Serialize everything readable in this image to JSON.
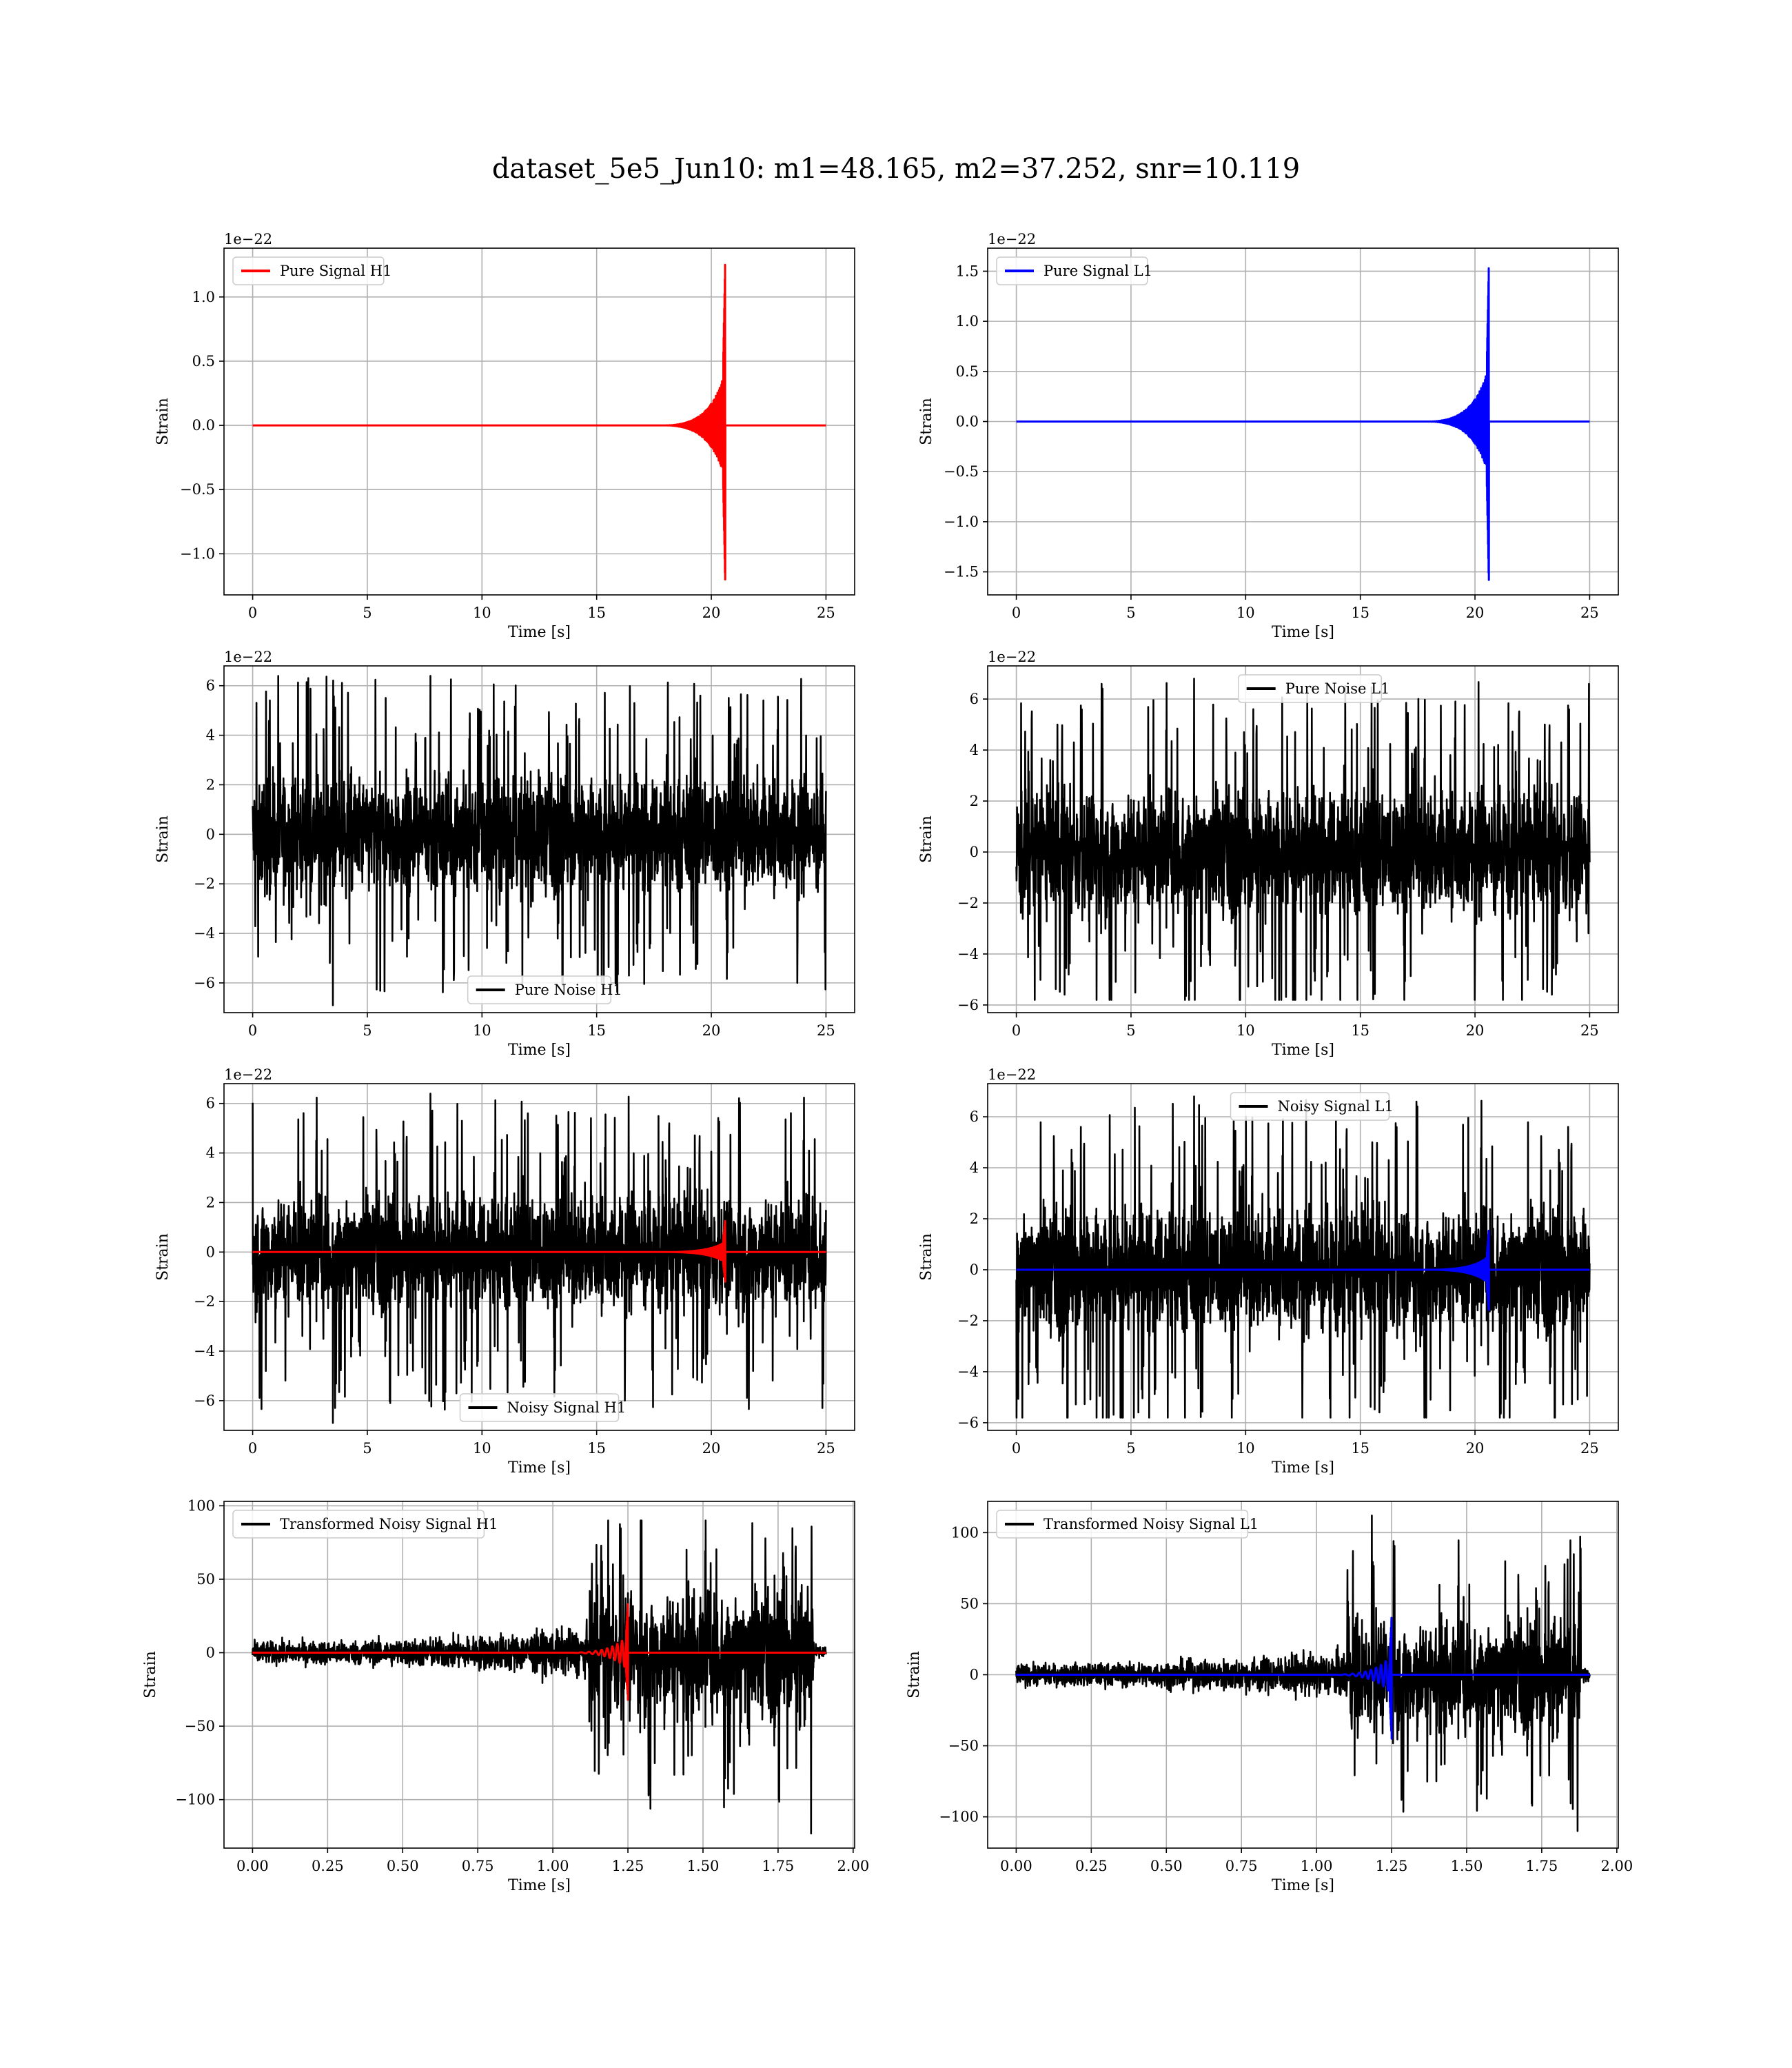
{
  "suptitle": "dataset_5e5_Jun10: m1=48.165, m2=37.252, snr=10.119",
  "colors": {
    "h1_signal": "#ff0000",
    "l1_signal": "#0000ff",
    "noise": "#000000",
    "grid": "#b0b0b0"
  },
  "chart_data": [
    {
      "type": "line",
      "id": "pure-signal-h1",
      "xlabel": "Time [s]",
      "ylabel": "Strain",
      "offset_label": "1e−22",
      "xlim": [
        -1.25,
        26.25
      ],
      "ylim": [
        -1.32,
        1.38
      ],
      "xticks": [
        0,
        5,
        10,
        15,
        20,
        25
      ],
      "xtick_labels": [
        "0",
        "5",
        "10",
        "15",
        "20",
        "25"
      ],
      "yticks": [
        -1.0,
        -0.5,
        0.0,
        0.5,
        1.0
      ],
      "ytick_labels": [
        "−1.0",
        "−0.5",
        "0.0",
        "0.5",
        "1.0"
      ],
      "legend": {
        "label": "Pure Signal H1",
        "position": "upper left",
        "color": "#ff0000"
      },
      "series": [
        {
          "name": "Pure Signal H1",
          "color": "#ff0000",
          "kind": "chirp",
          "t_start": 0,
          "t_end": 25,
          "t_merger": 20.6,
          "peak_pos": 1.25,
          "peak_neg": -1.2,
          "pre_merger_amp": 0.42
        }
      ]
    },
    {
      "type": "line",
      "id": "pure-signal-l1",
      "xlabel": "Time [s]",
      "ylabel": "Strain",
      "offset_label": "1e−22",
      "xlim": [
        -1.25,
        26.25
      ],
      "ylim": [
        -1.73,
        1.73
      ],
      "xticks": [
        0,
        5,
        10,
        15,
        20,
        25
      ],
      "xtick_labels": [
        "0",
        "5",
        "10",
        "15",
        "20",
        "25"
      ],
      "yticks": [
        -1.5,
        -1.0,
        -0.5,
        0.0,
        0.5,
        1.0,
        1.5
      ],
      "ytick_labels": [
        "−1.5",
        "−1.0",
        "−0.5",
        "0.0",
        "0.5",
        "1.0",
        "1.5"
      ],
      "legend": {
        "label": "Pure Signal L1",
        "position": "upper left",
        "color": "#0000ff"
      },
      "series": [
        {
          "name": "Pure Signal L1",
          "color": "#0000ff",
          "kind": "chirp",
          "t_start": 0,
          "t_end": 25,
          "t_merger": 20.6,
          "peak_pos": 1.53,
          "peak_neg": -1.58,
          "pre_merger_amp": 0.55
        }
      ]
    },
    {
      "type": "line",
      "id": "pure-noise-h1",
      "xlabel": "Time [s]",
      "ylabel": "Strain",
      "offset_label": "1e−22",
      "xlim": [
        -1.25,
        26.25
      ],
      "ylim": [
        -7.2,
        6.8
      ],
      "xticks": [
        0,
        5,
        10,
        15,
        20,
        25
      ],
      "xtick_labels": [
        "0",
        "5",
        "10",
        "15",
        "20",
        "25"
      ],
      "yticks": [
        -6,
        -4,
        -2,
        0,
        2,
        4,
        6
      ],
      "ytick_labels": [
        "−6",
        "−4",
        "−2",
        "0",
        "2",
        "4",
        "6"
      ],
      "legend": {
        "label": "Pure Noise H1",
        "position": "lower center",
        "color": "#000000"
      },
      "series": [
        {
          "name": "Pure Noise H1",
          "color": "#000000",
          "kind": "noise",
          "t_start": 0,
          "t_end": 25,
          "band": 3.3,
          "max": 6.4,
          "min": -6.9
        }
      ]
    },
    {
      "type": "line",
      "id": "pure-noise-l1",
      "xlabel": "Time [s]",
      "ylabel": "Strain",
      "offset_label": "1e−22",
      "xlim": [
        -1.25,
        26.25
      ],
      "ylim": [
        -6.3,
        7.3
      ],
      "xticks": [
        0,
        5,
        10,
        15,
        20,
        25
      ],
      "xtick_labels": [
        "0",
        "5",
        "10",
        "15",
        "20",
        "25"
      ],
      "yticks": [
        -6,
        -4,
        -2,
        0,
        2,
        4,
        6
      ],
      "ytick_labels": [
        "−6",
        "−4",
        "−2",
        "0",
        "2",
        "4",
        "6"
      ],
      "legend": {
        "label": "Pure Noise L1",
        "position": "upper center",
        "color": "#000000"
      },
      "series": [
        {
          "name": "Pure Noise L1",
          "color": "#000000",
          "kind": "noise",
          "t_start": 0,
          "t_end": 25,
          "band": 3.5,
          "max": 6.8,
          "min": -5.8
        }
      ]
    },
    {
      "type": "line",
      "id": "noisy-signal-h1",
      "xlabel": "Time [s]",
      "ylabel": "Strain",
      "offset_label": "1e−22",
      "xlim": [
        -1.25,
        26.25
      ],
      "ylim": [
        -7.2,
        6.8
      ],
      "xticks": [
        0,
        5,
        10,
        15,
        20,
        25
      ],
      "xtick_labels": [
        "0",
        "5",
        "10",
        "15",
        "20",
        "25"
      ],
      "yticks": [
        -6,
        -4,
        -2,
        0,
        2,
        4,
        6
      ],
      "ytick_labels": [
        "−6",
        "−4",
        "−2",
        "0",
        "2",
        "4",
        "6"
      ],
      "legend": {
        "label": "Noisy Signal H1",
        "position": "lower center",
        "color": "#000000"
      },
      "series": [
        {
          "name": "Noisy Signal H1",
          "color": "#000000",
          "kind": "noise",
          "t_start": 0,
          "t_end": 25,
          "band": 3.3,
          "max": 6.4,
          "min": -6.9
        },
        {
          "color": "#ff0000",
          "kind": "chirp",
          "t_start": 0,
          "t_end": 25,
          "t_merger": 20.6,
          "peak_pos": 1.25,
          "peak_neg": -1.2,
          "pre_merger_amp": 0.42
        }
      ]
    },
    {
      "type": "line",
      "id": "noisy-signal-l1",
      "xlabel": "Time [s]",
      "ylabel": "Strain",
      "offset_label": "1e−22",
      "xlim": [
        -1.25,
        26.25
      ],
      "ylim": [
        -6.3,
        7.3
      ],
      "xticks": [
        0,
        5,
        10,
        15,
        20,
        25
      ],
      "xtick_labels": [
        "0",
        "5",
        "10",
        "15",
        "20",
        "25"
      ],
      "yticks": [
        -6,
        -4,
        -2,
        0,
        2,
        4,
        6
      ],
      "ytick_labels": [
        "−6",
        "−4",
        "−2",
        "0",
        "2",
        "4",
        "6"
      ],
      "legend": {
        "label": "Noisy Signal L1",
        "position": "upper center",
        "color": "#000000"
      },
      "series": [
        {
          "name": "Noisy Signal L1",
          "color": "#000000",
          "kind": "noise",
          "t_start": 0,
          "t_end": 25,
          "band": 3.5,
          "max": 6.8,
          "min": -5.8
        },
        {
          "color": "#0000ff",
          "kind": "chirp",
          "t_start": 0,
          "t_end": 25,
          "t_merger": 20.6,
          "peak_pos": 1.53,
          "peak_neg": -1.58,
          "pre_merger_amp": 0.55
        }
      ]
    },
    {
      "type": "line",
      "id": "transformed-noisy-signal-h1",
      "xlabel": "Time [s]",
      "ylabel": "Strain",
      "offset_label": "",
      "xlim": [
        -0.095,
        2.005
      ],
      "ylim": [
        -133,
        103
      ],
      "xticks": [
        0,
        0.25,
        0.5,
        0.75,
        1.0,
        1.25,
        1.5,
        1.75,
        2.0
      ],
      "xtick_labels": [
        "0.00",
        "0.25",
        "0.50",
        "0.75",
        "1.00",
        "1.25",
        "1.50",
        "1.75",
        "2.00"
      ],
      "yticks": [
        -100,
        -50,
        0,
        50,
        100
      ],
      "ytick_labels": [
        "−100",
        "−50",
        "0",
        "50",
        "100"
      ],
      "legend": {
        "label": "Transformed Noisy Signal H1",
        "position": "upper left",
        "color": "#000000"
      },
      "series": [
        {
          "name": "Transformed Noisy Signal H1",
          "color": "#000000",
          "kind": "whitened",
          "t_start": 0,
          "t_end": 1.91,
          "t_jump": 1.12,
          "t_drop": 1.87,
          "low_amp": 8,
          "high_amp": 45,
          "max": 90,
          "min": -123
        },
        {
          "color": "#ff0000",
          "kind": "chirp",
          "t_start": 0,
          "t_end": 1.91,
          "t_merger": 1.25,
          "peak_pos": 33,
          "peak_neg": -32,
          "pre_merger_amp": 12
        }
      ]
    },
    {
      "type": "line",
      "id": "transformed-noisy-signal-l1",
      "xlabel": "Time [s]",
      "ylabel": "Strain",
      "offset_label": "",
      "xlim": [
        -0.095,
        2.005
      ],
      "ylim": [
        -122,
        122
      ],
      "xticks": [
        0,
        0.25,
        0.5,
        0.75,
        1.0,
        1.25,
        1.5,
        1.75,
        2.0
      ],
      "xtick_labels": [
        "0.00",
        "0.25",
        "0.50",
        "0.75",
        "1.00",
        "1.25",
        "1.50",
        "1.75",
        "2.00"
      ],
      "yticks": [
        -100,
        -50,
        0,
        50,
        100
      ],
      "ytick_labels": [
        "−100",
        "−50",
        "0",
        "50",
        "100"
      ],
      "legend": {
        "label": "Transformed Noisy Signal L1",
        "position": "upper left",
        "color": "#000000"
      },
      "series": [
        {
          "name": "Transformed Noisy Signal L1",
          "color": "#000000",
          "kind": "whitened",
          "t_start": 0,
          "t_end": 1.91,
          "t_jump": 1.1,
          "t_drop": 1.88,
          "low_amp": 8,
          "high_amp": 40,
          "max": 112,
          "min": -110
        },
        {
          "color": "#0000ff",
          "kind": "chirp",
          "t_start": 0,
          "t_end": 1.91,
          "t_merger": 1.25,
          "peak_pos": 40,
          "peak_neg": -45,
          "pre_merger_amp": 14
        }
      ]
    }
  ]
}
